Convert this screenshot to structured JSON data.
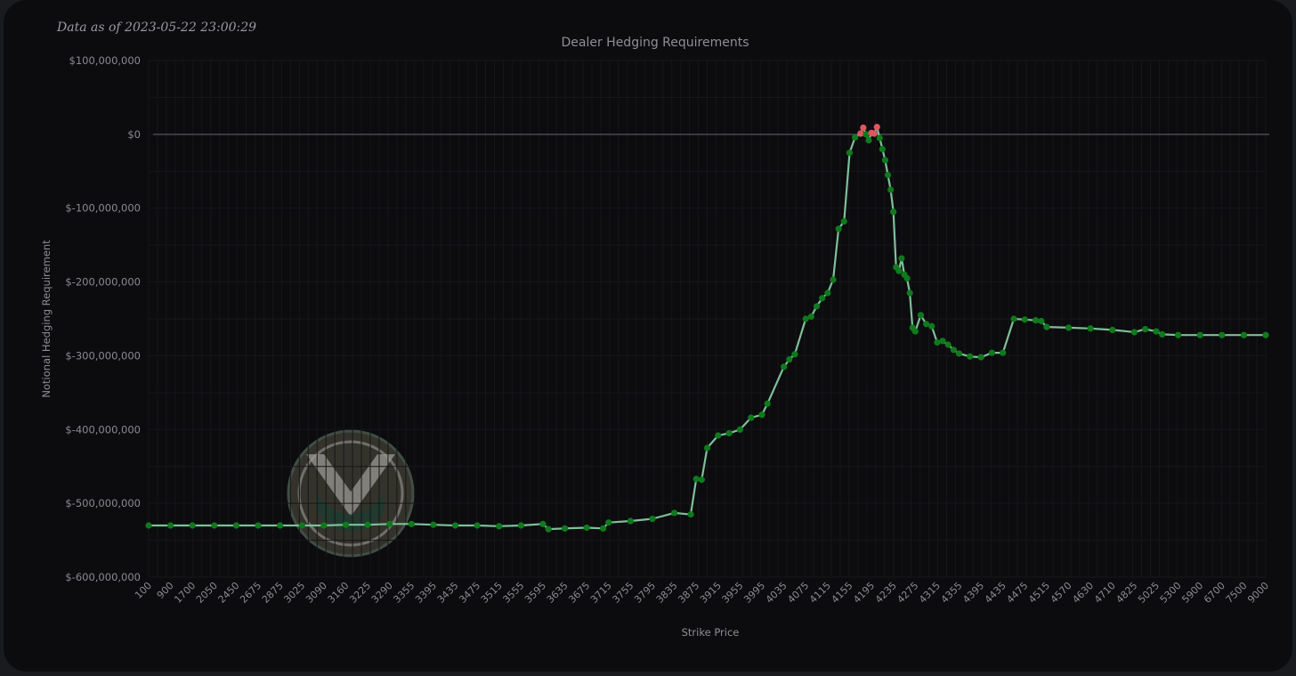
{
  "stamp": "Data as of 2023-05-22 23:00:29",
  "chart_data": {
    "type": "line",
    "title": "Dealer Hedging Requirements",
    "xlabel": "Strike Price",
    "ylabel": "Notional Hedging Requirement",
    "ylim": [
      -600000000,
      100000000
    ],
    "yticks": [
      100000000,
      0,
      -100000000,
      -200000000,
      -300000000,
      -400000000,
      -500000000,
      -600000000
    ],
    "ytick_labels": [
      "$100,000,000",
      "$0",
      "$-100,000,000",
      "$-200,000,000",
      "$-300,000,000",
      "$-400,000,000",
      "$-500,000,000",
      "$-600,000,000"
    ],
    "x_tick_labels": [
      "100",
      "900",
      "1700",
      "2050",
      "2450",
      "2675",
      "2875",
      "3025",
      "3090",
      "3160",
      "3225",
      "3290",
      "3355",
      "3395",
      "3435",
      "3475",
      "3515",
      "3555",
      "3595",
      "3635",
      "3675",
      "3715",
      "3755",
      "3795",
      "3835",
      "3875",
      "3915",
      "3955",
      "3995",
      "4035",
      "4075",
      "4115",
      "4155",
      "4195",
      "4235",
      "4275",
      "4315",
      "4355",
      "4395",
      "4435",
      "4475",
      "4515",
      "4570",
      "4630",
      "4710",
      "4825",
      "5025",
      "5300",
      "5900",
      "6700",
      "7500",
      "9000"
    ],
    "grid": true,
    "colors": {
      "line": "#7fbf9a",
      "positive_marker": "#e0555e",
      "negative_marker": "#0f7a1c",
      "zero_line": "#66666c"
    },
    "series": [
      {
        "x": [
          "100",
          "900",
          "1700",
          "2050",
          "2450",
          "2675",
          "2875",
          "3025",
          "3090",
          "3160",
          "3225",
          "3290",
          "3355",
          "3395",
          "3435",
          "3475",
          "3515",
          "3555",
          "3595",
          "3605",
          "3635",
          "3675",
          "3705",
          "3715",
          "3755",
          "3795",
          "3835",
          "3865",
          "3875",
          "3885",
          "3895",
          "3915",
          "3935",
          "3955",
          "3975",
          "3995",
          "4005",
          "4035",
          "4045",
          "4055",
          "4075",
          "4085",
          "4095",
          "4105",
          "4115",
          "4125",
          "4135",
          "4145",
          "4155",
          "4165",
          "4175",
          "4180",
          "4185",
          "4190",
          "4195",
          "4200",
          "4205",
          "4210",
          "4215",
          "4220",
          "4225",
          "4230",
          "4235",
          "4240",
          "4245",
          "4250",
          "4255",
          "4260",
          "4265",
          "4270",
          "4275",
          "4285",
          "4295",
          "4305",
          "4315",
          "4325",
          "4335",
          "4345",
          "4355",
          "4375",
          "4395",
          "4415",
          "4435",
          "4455",
          "4475",
          "4495",
          "4505",
          "4515",
          "4570",
          "4630",
          "4710",
          "4825",
          "4925",
          "5025",
          "5100",
          "5300",
          "5900",
          "6700",
          "7500",
          "9000"
        ],
        "values": [
          -530000000,
          -530000000,
          -530000000,
          -530000000,
          -530000000,
          -530000000,
          -530000000,
          -530000000,
          -530000000,
          -529000000,
          -529000000,
          -528000000,
          -528000000,
          -529000000,
          -530000000,
          -530000000,
          -531000000,
          -530000000,
          -528000000,
          -535000000,
          -534000000,
          -533000000,
          -534000000,
          -526000000,
          -524000000,
          -521000000,
          -513000000,
          -515000000,
          -467000000,
          -468000000,
          -425000000,
          -408000000,
          -405000000,
          -400000000,
          -384000000,
          -380000000,
          -365000000,
          -315000000,
          -305000000,
          -298000000,
          -250000000,
          -247000000,
          -233000000,
          -222000000,
          -215000000,
          -197000000,
          -128000000,
          -118000000,
          -25000000,
          -4000000,
          1000000,
          9000000,
          0,
          -8000000,
          2000000,
          1000000,
          10000000,
          -5000000,
          -20000000,
          -35000000,
          -55000000,
          -75000000,
          -105000000,
          -180000000,
          -185000000,
          -168000000,
          -190000000,
          -195000000,
          -215000000,
          -262000000,
          -267000000,
          -245000000,
          -257000000,
          -260000000,
          -282000000,
          -280000000,
          -285000000,
          -292000000,
          -297000000,
          -301000000,
          -302000000,
          -296000000,
          -296000000,
          -250000000,
          -251000000,
          -252000000,
          -253000000,
          -261000000,
          -262000000,
          -263000000,
          -265000000,
          -268000000,
          -264000000,
          -267000000,
          -271000000,
          -272000000,
          -272000000,
          -272000000,
          -272000000,
          -272000000
        ]
      }
    ]
  }
}
